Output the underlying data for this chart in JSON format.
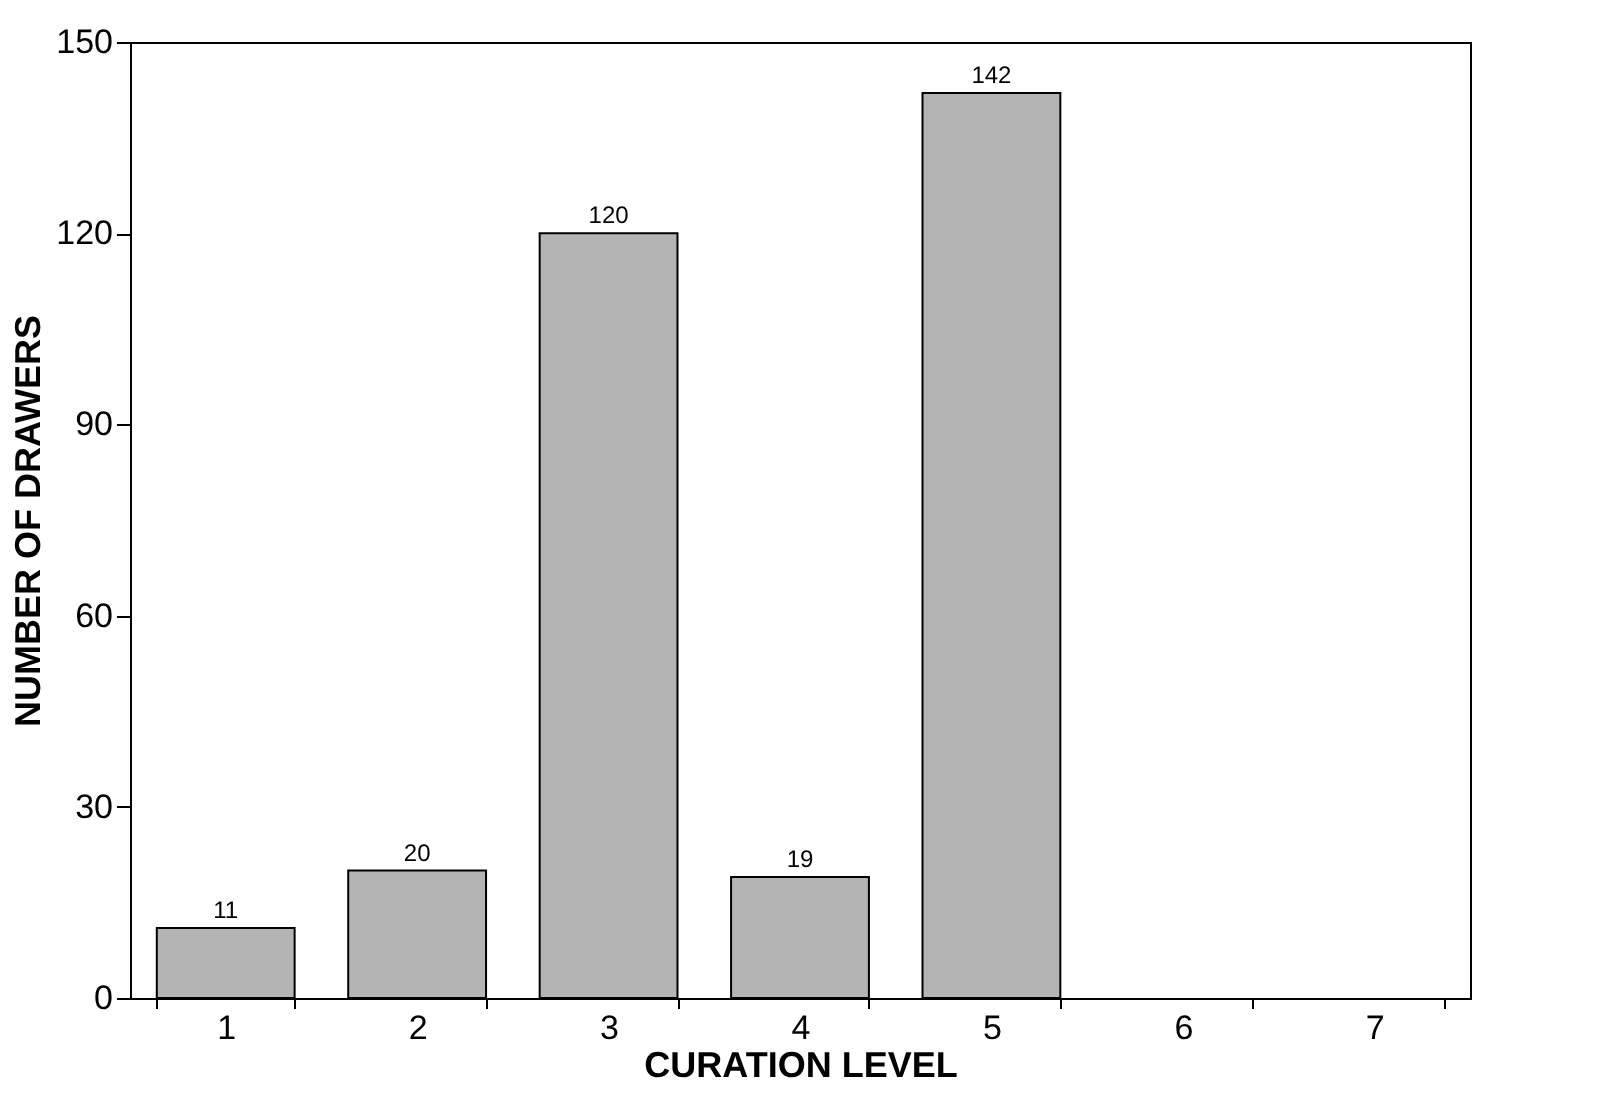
{
  "chart_data": {
    "type": "bar",
    "xlabel": "CURATION LEVEL",
    "ylabel": "NUMBER OF DRAWERS",
    "categories": [
      "1",
      "2",
      "3",
      "4",
      "5",
      "6",
      "7"
    ],
    "values": [
      11,
      20,
      120,
      19,
      142,
      null,
      null
    ],
    "color": "#b4b4b4",
    "ylim": [
      0,
      150
    ],
    "yticks": [
      0,
      30,
      60,
      90,
      120,
      150
    ],
    "grid": false,
    "data_labels": true
  }
}
